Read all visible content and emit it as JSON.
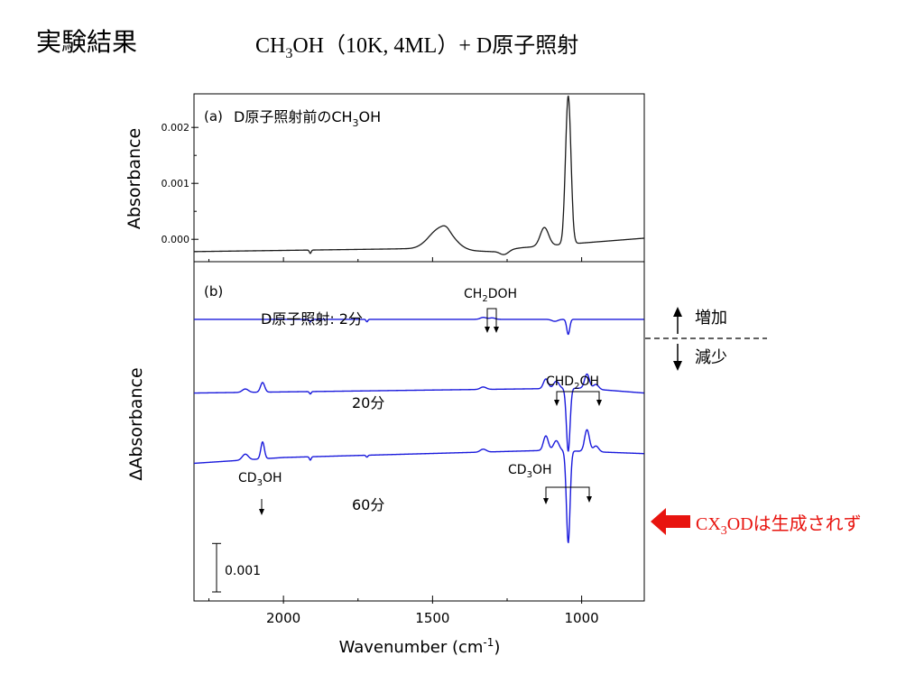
{
  "slide": {
    "heading": "実験結果",
    "subtitle": {
      "a": "CH",
      "b": "3",
      "c": "OH（10K, 4ML）+ D原子照射"
    }
  },
  "panel_a": {
    "label": "(a)",
    "title": {
      "a": "D原子照射前のCH",
      "b": "3",
      "c": "OH"
    },
    "ylabel": "Absorbance"
  },
  "panel_b": {
    "label": "(b)",
    "ylabel": "ΔAbsorbance",
    "scalebar_label": "0.001"
  },
  "xlabel": {
    "a": "Wavenumber (cm",
    "b": "-1",
    "c": ")"
  },
  "traces": {
    "t2": {
      "label": "D原子照射: 2分"
    },
    "t20": {
      "label": "20分"
    },
    "t60": {
      "label": "60分"
    }
  },
  "annotations": {
    "ch2doh": {
      "a": "CH",
      "b": "2",
      "c": "DOH"
    },
    "chd2oh": {
      "a": "CHD",
      "b": "2",
      "c": "OH"
    },
    "cd3oh_left": {
      "a": "CD",
      "b": "3",
      "c": "OH"
    },
    "cd3oh_right": {
      "a": "CD",
      "b": "3",
      "c": "OH"
    }
  },
  "side": {
    "increase": "増加",
    "decrease": "減少",
    "note": {
      "a": "CX",
      "b": "3",
      "c": "ODは生成されず"
    }
  },
  "colors": {
    "trace_a": "#1a1a1a",
    "trace_b": "#1a1adc",
    "arrow": "#e8140f",
    "note": "#e8140f"
  },
  "chart_data": [
    {
      "type": "line",
      "name": "panel_a",
      "x_unit": "cm-1",
      "xlim": [
        2300,
        790
      ],
      "ylim": [
        -0.0004,
        0.0026
      ],
      "x_ticks": [
        2000,
        1500,
        1000
      ],
      "y_ticks": [
        0.0,
        0.001,
        0.002
      ],
      "y_tick_labels": [
        "0.000",
        "0.001",
        "0.002"
      ],
      "series": [
        {
          "baseline": [
            [
              2300,
              -0.00022
            ],
            [
              1600,
              -0.00017
            ],
            [
              1300,
              -0.00022
            ],
            [
              1200,
              -0.00015
            ],
            [
              790,
              2e-05
            ]
          ],
          "peaks": [
            {
              "center": 1470,
              "width": 40,
              "height": 0.0004
            },
            {
              "center": 1455,
              "width": 12,
              "height": 5e-05
            },
            {
              "center": 1260,
              "width": 15,
              "height": -8e-05
            },
            {
              "center": 1125,
              "width": 14,
              "height": 0.00033
            },
            {
              "center": 1045,
              "width": 9,
              "height": 0.00265
            },
            {
              "center": 1910,
              "width": 3,
              "height": -6e-05
            }
          ]
        }
      ]
    },
    {
      "type": "line",
      "name": "panel_b",
      "x_unit": "cm-1",
      "xlim": [
        2300,
        790
      ],
      "ylim": [
        -0.0045,
        0.0025
      ],
      "x_ticks": [
        2000,
        1500,
        1000
      ],
      "scalebar": 0.001,
      "series": [
        {
          "name": "2分",
          "offset": 0.00131,
          "baseline": [
            [
              2300,
              0.0
            ],
            [
              790,
              0.0
            ]
          ],
          "peaks": [
            {
              "center": 1330,
              "width": 10,
              "height": 4e-05
            },
            {
              "center": 1300,
              "width": 10,
              "height": 3e-05
            },
            {
              "center": 1090,
              "width": 10,
              "height": -4e-05
            },
            {
              "center": 1045,
              "width": 5,
              "height": -0.00031
            },
            {
              "center": 1910,
              "width": 3,
              "height": -5e-05
            },
            {
              "center": 1720,
              "width": 3,
              "height": -5e-05
            }
          ]
        },
        {
          "name": "20分",
          "offset": -0.00021,
          "baseline": [
            [
              2300,
              0.0
            ],
            [
              1000,
              0.0001
            ],
            [
              790,
              0.0
            ]
          ],
          "peaks": [
            {
              "center": 2128,
              "width": 10,
              "height": 7e-05
            },
            {
              "center": 2070,
              "width": 7,
              "height": 0.0002
            },
            {
              "center": 1910,
              "width": 3,
              "height": -5e-05
            },
            {
              "center": 1330,
              "width": 10,
              "height": 5e-05
            },
            {
              "center": 1120,
              "width": 8,
              "height": 0.0002
            },
            {
              "center": 1085,
              "width": 9,
              "height": 0.00015
            },
            {
              "center": 1045,
              "width": 6,
              "height": -0.0013
            },
            {
              "center": 982,
              "width": 8,
              "height": 0.0003
            },
            {
              "center": 952,
              "width": 9,
              "height": 0.0001
            }
          ]
        },
        {
          "name": "60分",
          "offset": -0.00154,
          "baseline": [
            [
              2300,
              -0.00012
            ],
            [
              2000,
              0.0
            ],
            [
              1100,
              0.00015
            ],
            [
              790,
              8e-05
            ]
          ],
          "peaks": [
            {
              "center": 2128,
              "width": 10,
              "height": 0.00012
            },
            {
              "center": 2070,
              "width": 6,
              "height": 0.00035
            },
            {
              "center": 1910,
              "width": 3,
              "height": -7e-05
            },
            {
              "center": 1720,
              "width": 3,
              "height": -4e-05
            },
            {
              "center": 1330,
              "width": 10,
              "height": 6e-05
            },
            {
              "center": 1120,
              "width": 8,
              "height": 0.0003
            },
            {
              "center": 1085,
              "width": 9,
              "height": 0.0002
            },
            {
              "center": 1045,
              "width": 6,
              "height": -0.0019
            },
            {
              "center": 982,
              "width": 8,
              "height": 0.00045
            },
            {
              "center": 952,
              "width": 9,
              "height": 0.00012
            }
          ]
        }
      ]
    }
  ]
}
